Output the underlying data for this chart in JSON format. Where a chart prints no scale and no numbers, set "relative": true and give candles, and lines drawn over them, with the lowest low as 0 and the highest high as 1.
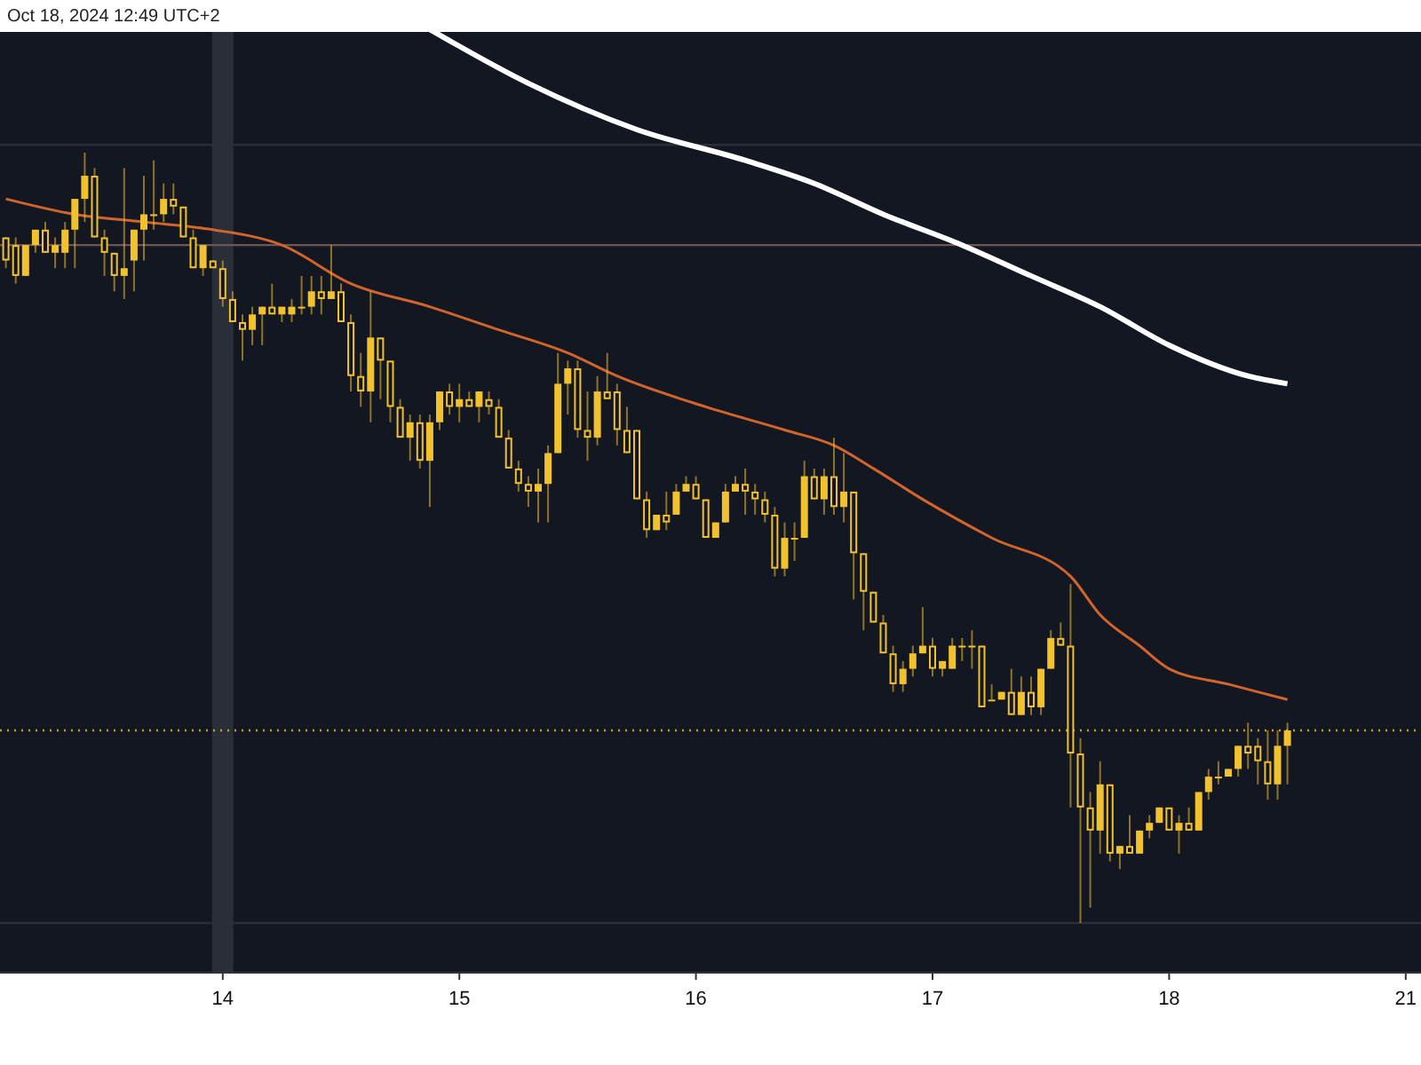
{
  "chart_data": {
    "type": "candlestick",
    "relative": true,
    "color": "#f2c12e",
    "annotations": [
      "Oct 18, 2024 12:49 UTC+2"
    ],
    "categories": [
      null,
      null,
      null,
      null,
      null,
      null,
      null,
      null,
      null,
      null,
      null,
      null,
      null,
      null,
      null,
      null,
      null,
      null,
      null,
      null,
      null,
      null,
      "14",
      null,
      null,
      null,
      null,
      null,
      null,
      null,
      null,
      null,
      null,
      null,
      null,
      null,
      null,
      null,
      null,
      null,
      null,
      null,
      null,
      null,
      null,
      null,
      "15",
      null,
      null,
      null,
      null,
      null,
      null,
      null,
      null,
      null,
      null,
      null,
      null,
      null,
      null,
      null,
      null,
      null,
      null,
      null,
      null,
      null,
      null,
      null,
      "16",
      null,
      null,
      null,
      null,
      null,
      null,
      null,
      null,
      null,
      null,
      null,
      null,
      null,
      null,
      null,
      null,
      null,
      null,
      null,
      null,
      null,
      null,
      null,
      "17",
      null,
      null,
      null,
      null,
      null,
      null,
      null,
      null,
      null,
      null,
      null,
      null,
      null,
      null,
      null,
      null,
      null,
      null,
      null,
      null,
      null,
      null,
      null,
      "18",
      null,
      null,
      null,
      null,
      null,
      null,
      null,
      null,
      null,
      null,
      null,
      null,
      null,
      null,
      null,
      null,
      null,
      null,
      null,
      null,
      null,
      null,
      null,
      "21"
    ],
    "ohlc": [
      [
        0.89,
        0.89,
        0.85,
        0.86
      ],
      [
        0.88,
        0.89,
        0.83,
        0.84
      ],
      [
        0.84,
        0.88,
        0.84,
        0.88
      ],
      [
        0.88,
        0.9,
        0.87,
        0.9
      ],
      [
        0.9,
        0.91,
        0.87,
        0.87
      ],
      [
        0.87,
        0.89,
        0.85,
        0.88
      ],
      [
        0.87,
        0.91,
        0.85,
        0.9
      ],
      [
        0.9,
        0.94,
        0.85,
        0.94
      ],
      [
        0.94,
        1.0,
        0.91,
        0.97
      ],
      [
        0.97,
        0.98,
        0.89,
        0.89
      ],
      [
        0.89,
        0.9,
        0.84,
        0.87
      ],
      [
        0.87,
        0.87,
        0.82,
        0.84
      ],
      [
        0.84,
        0.98,
        0.81,
        0.85
      ],
      [
        0.86,
        0.9,
        0.82,
        0.9
      ],
      [
        0.9,
        0.97,
        0.86,
        0.92
      ],
      [
        0.92,
        0.99,
        0.9,
        0.92
      ],
      [
        0.92,
        0.96,
        0.91,
        0.94
      ],
      [
        0.94,
        0.96,
        0.92,
        0.93
      ],
      [
        0.93,
        0.93,
        0.89,
        0.89
      ],
      [
        0.89,
        0.9,
        0.85,
        0.85
      ],
      [
        0.85,
        0.88,
        0.84,
        0.88
      ],
      [
        0.86,
        0.86,
        0.85,
        0.85
      ],
      [
        0.85,
        0.86,
        0.8,
        0.81
      ],
      [
        0.81,
        0.82,
        0.78,
        0.78
      ],
      [
        0.78,
        0.79,
        0.73,
        0.77
      ],
      [
        0.77,
        0.8,
        0.75,
        0.79
      ],
      [
        0.79,
        0.8,
        0.75,
        0.8
      ],
      [
        0.8,
        0.83,
        0.79,
        0.79
      ],
      [
        0.79,
        0.8,
        0.78,
        0.8
      ],
      [
        0.79,
        0.81,
        0.78,
        0.8
      ],
      [
        0.8,
        0.84,
        0.79,
        0.8
      ],
      [
        0.8,
        0.84,
        0.79,
        0.82
      ],
      [
        0.82,
        0.84,
        0.79,
        0.81
      ],
      [
        0.81,
        0.88,
        0.81,
        0.82
      ],
      [
        0.82,
        0.83,
        0.78,
        0.78
      ],
      [
        0.78,
        0.79,
        0.69,
        0.71
      ],
      [
        0.71,
        0.74,
        0.67,
        0.69
      ],
      [
        0.69,
        0.82,
        0.65,
        0.76
      ],
      [
        0.76,
        0.76,
        0.68,
        0.73
      ],
      [
        0.73,
        0.73,
        0.65,
        0.67
      ],
      [
        0.67,
        0.68,
        0.63,
        0.63
      ],
      [
        0.63,
        0.66,
        0.6,
        0.65
      ],
      [
        0.65,
        0.66,
        0.59,
        0.6
      ],
      [
        0.6,
        0.66,
        0.54,
        0.65
      ],
      [
        0.65,
        0.69,
        0.64,
        0.69
      ],
      [
        0.69,
        0.7,
        0.66,
        0.67
      ],
      [
        0.67,
        0.7,
        0.65,
        0.68
      ],
      [
        0.68,
        0.69,
        0.67,
        0.67
      ],
      [
        0.67,
        0.69,
        0.65,
        0.69
      ],
      [
        0.68,
        0.69,
        0.66,
        0.67
      ],
      [
        0.67,
        0.68,
        0.63,
        0.63
      ],
      [
        0.63,
        0.64,
        0.59,
        0.59
      ],
      [
        0.59,
        0.6,
        0.56,
        0.57
      ],
      [
        0.57,
        0.58,
        0.54,
        0.56
      ],
      [
        0.56,
        0.59,
        0.52,
        0.57
      ],
      [
        0.57,
        0.62,
        0.52,
        0.61
      ],
      [
        0.61,
        0.74,
        0.61,
        0.7
      ],
      [
        0.7,
        0.73,
        0.66,
        0.72
      ],
      [
        0.72,
        0.73,
        0.63,
        0.64
      ],
      [
        0.64,
        0.69,
        0.6,
        0.63
      ],
      [
        0.63,
        0.71,
        0.62,
        0.69
      ],
      [
        0.69,
        0.74,
        0.68,
        0.68
      ],
      [
        0.69,
        0.7,
        0.62,
        0.64
      ],
      [
        0.64,
        0.67,
        0.61,
        0.61
      ],
      [
        0.64,
        0.64,
        0.55,
        0.55
      ],
      [
        0.55,
        0.56,
        0.5,
        0.51
      ],
      [
        0.51,
        0.53,
        0.51,
        0.53
      ],
      [
        0.53,
        0.56,
        0.51,
        0.52
      ],
      [
        0.53,
        0.57,
        0.53,
        0.56
      ],
      [
        0.56,
        0.58,
        0.56,
        0.57
      ],
      [
        0.57,
        0.58,
        0.55,
        0.55
      ],
      [
        0.55,
        0.55,
        0.5,
        0.5
      ],
      [
        0.5,
        0.52,
        0.5,
        0.52
      ],
      [
        0.52,
        0.57,
        0.52,
        0.56
      ],
      [
        0.56,
        0.58,
        0.56,
        0.57
      ],
      [
        0.57,
        0.59,
        0.53,
        0.56
      ],
      [
        0.56,
        0.57,
        0.53,
        0.55
      ],
      [
        0.55,
        0.56,
        0.52,
        0.53
      ],
      [
        0.53,
        0.54,
        0.45,
        0.46
      ],
      [
        0.46,
        0.52,
        0.45,
        0.5
      ],
      [
        0.5,
        0.52,
        0.47,
        0.5
      ],
      [
        0.5,
        0.6,
        0.5,
        0.58
      ],
      [
        0.58,
        0.59,
        0.55,
        0.55
      ],
      [
        0.55,
        0.59,
        0.53,
        0.58
      ],
      [
        0.58,
        0.63,
        0.53,
        0.54
      ],
      [
        0.54,
        0.61,
        0.52,
        0.56
      ],
      [
        0.56,
        0.56,
        0.42,
        0.48
      ],
      [
        0.48,
        0.48,
        0.38,
        0.43
      ],
      [
        0.43,
        0.43,
        0.39,
        0.39
      ],
      [
        0.39,
        0.4,
        0.35,
        0.35
      ],
      [
        0.35,
        0.36,
        0.3,
        0.31
      ],
      [
        0.31,
        0.34,
        0.3,
        0.33
      ],
      [
        0.33,
        0.36,
        0.32,
        0.35
      ],
      [
        0.35,
        0.41,
        0.35,
        0.36
      ],
      [
        0.36,
        0.37,
        0.32,
        0.33
      ],
      [
        0.33,
        0.34,
        0.32,
        0.34
      ],
      [
        0.33,
        0.37,
        0.33,
        0.36
      ],
      [
        0.36,
        0.37,
        0.34,
        0.36
      ],
      [
        0.36,
        0.38,
        0.33,
        0.36
      ],
      [
        0.36,
        0.36,
        0.28,
        0.28
      ],
      [
        0.29,
        0.31,
        0.29,
        0.29
      ],
      [
        0.29,
        0.3,
        0.29,
        0.3
      ],
      [
        0.3,
        0.33,
        0.27,
        0.27
      ],
      [
        0.27,
        0.32,
        0.27,
        0.3
      ],
      [
        0.3,
        0.32,
        0.27,
        0.28
      ],
      [
        0.28,
        0.33,
        0.27,
        0.33
      ],
      [
        0.33,
        0.38,
        0.33,
        0.37
      ],
      [
        0.37,
        0.39,
        0.36,
        0.36
      ],
      [
        0.36,
        0.44,
        0.15,
        0.22
      ],
      [
        0.22,
        0.24,
        0.0,
        0.15
      ],
      [
        0.15,
        0.17,
        0.02,
        0.12
      ],
      [
        0.12,
        0.21,
        0.09,
        0.18
      ],
      [
        0.18,
        0.18,
        0.08,
        0.09
      ],
      [
        0.09,
        0.1,
        0.07,
        0.1
      ],
      [
        0.1,
        0.14,
        0.09,
        0.09
      ],
      [
        0.09,
        0.12,
        0.09,
        0.12
      ],
      [
        0.12,
        0.14,
        0.11,
        0.13
      ],
      [
        0.13,
        0.15,
        0.13,
        0.15
      ],
      [
        0.15,
        0.15,
        0.12,
        0.12
      ],
      [
        0.12,
        0.14,
        0.09,
        0.13
      ],
      [
        0.13,
        0.15,
        0.12,
        0.12
      ],
      [
        0.12,
        0.17,
        0.12,
        0.17
      ],
      [
        0.17,
        0.2,
        0.16,
        0.19
      ],
      [
        0.19,
        0.21,
        0.18,
        0.19
      ],
      [
        0.19,
        0.2,
        0.19,
        0.2
      ],
      [
        0.2,
        0.23,
        0.19,
        0.23
      ],
      [
        0.23,
        0.26,
        0.2,
        0.22
      ],
      [
        0.23,
        0.24,
        0.18,
        0.21
      ],
      [
        0.21,
        0.25,
        0.16,
        0.18
      ],
      [
        0.18,
        0.25,
        0.16,
        0.23
      ],
      [
        0.23,
        0.26,
        0.18,
        0.25
      ],
      null,
      null,
      null,
      null,
      null,
      null,
      null,
      null,
      null,
      null,
      null,
      null
    ],
    "series": [
      {
        "type": "line",
        "color": "#d2642c",
        "values": [
          0.94,
          null,
          null,
          null,
          null,
          null,
          null,
          0.92,
          null,
          null,
          null,
          null,
          null,
          null,
          0.91,
          null,
          null,
          null,
          null,
          null,
          null,
          0.9,
          null,
          null,
          null,
          null,
          null,
          null,
          0.88,
          null,
          null,
          null,
          null,
          null,
          null,
          0.83,
          null,
          null,
          null,
          null,
          null,
          null,
          null,
          0.8,
          null,
          null,
          null,
          null,
          null,
          null,
          0.77,
          null,
          null,
          null,
          null,
          null,
          null,
          0.74,
          null,
          null,
          null,
          null,
          0.71,
          null,
          null,
          null,
          null,
          null,
          null,
          null,
          null,
          0.67,
          null,
          null,
          null,
          null,
          null,
          null,
          null,
          0.64,
          null,
          null,
          null,
          null,
          0.62,
          null,
          null,
          null,
          0.59,
          null,
          null,
          null,
          null,
          0.55,
          null,
          null,
          null,
          null,
          null,
          null,
          0.5,
          null,
          null,
          null,
          null,
          null,
          null,
          null,
          0.45,
          null,
          null,
          0.4,
          null,
          null,
          null,
          0.36,
          null,
          null,
          0.33,
          null,
          null,
          null,
          null,
          null,
          0.31,
          null,
          null,
          null,
          null,
          null,
          0.29,
          null,
          null,
          null,
          null,
          null,
          null,
          null,
          null,
          null,
          null,
          null,
          null
        ]
      },
      {
        "type": "line",
        "color": "#ffffff",
        "values": [
          null,
          null,
          null,
          null,
          null,
          null,
          null,
          null,
          null,
          null,
          null,
          null,
          null,
          null,
          null,
          null,
          null,
          null,
          null,
          null,
          null,
          null,
          null,
          null,
          null,
          null,
          null,
          null,
          null,
          null,
          null,
          null,
          null,
          null,
          null,
          null,
          null,
          null,
          null,
          null,
          null,
          null,
          null,
          1.16,
          null,
          null,
          null,
          null,
          null,
          null,
          null,
          null,
          null,
          1.09,
          null,
          null,
          null,
          null,
          null,
          null,
          null,
          null,
          null,
          null,
          1.03,
          null,
          null,
          null,
          null,
          null,
          null,
          null,
          null,
          null,
          null,
          0.99,
          null,
          null,
          null,
          null,
          null,
          null,
          0.96,
          null,
          null,
          null,
          null,
          null,
          null,
          0.92,
          null,
          null,
          null,
          null,
          null,
          null,
          null,
          0.88,
          null,
          null,
          null,
          null,
          null,
          null,
          0.84,
          null,
          null,
          null,
          null,
          null,
          null,
          0.8,
          null,
          null,
          null,
          null,
          null,
          null,
          0.75,
          null,
          null,
          null,
          null,
          null,
          null,
          null,
          0.71,
          null,
          null,
          null,
          0.7,
          null,
          null,
          null,
          null,
          null,
          null,
          null,
          null,
          null,
          null,
          null,
          null
        ]
      }
    ],
    "ref_lines": [
      {
        "axis": "y",
        "value": 0.88,
        "color": "#6e5652"
      },
      {
        "axis": "y",
        "value": 0.25,
        "color": "#c9a227",
        "line_style": "dotted"
      },
      {
        "axis": "y",
        "value": 1.01,
        "color": "#2a2e39"
      },
      {
        "axis": "y",
        "value": 0.0,
        "color": "#2a2e39"
      }
    ],
    "bands": [
      {
        "axis": "x",
        "from": "14",
        "to": "14",
        "color": "#2a2e39"
      }
    ]
  }
}
